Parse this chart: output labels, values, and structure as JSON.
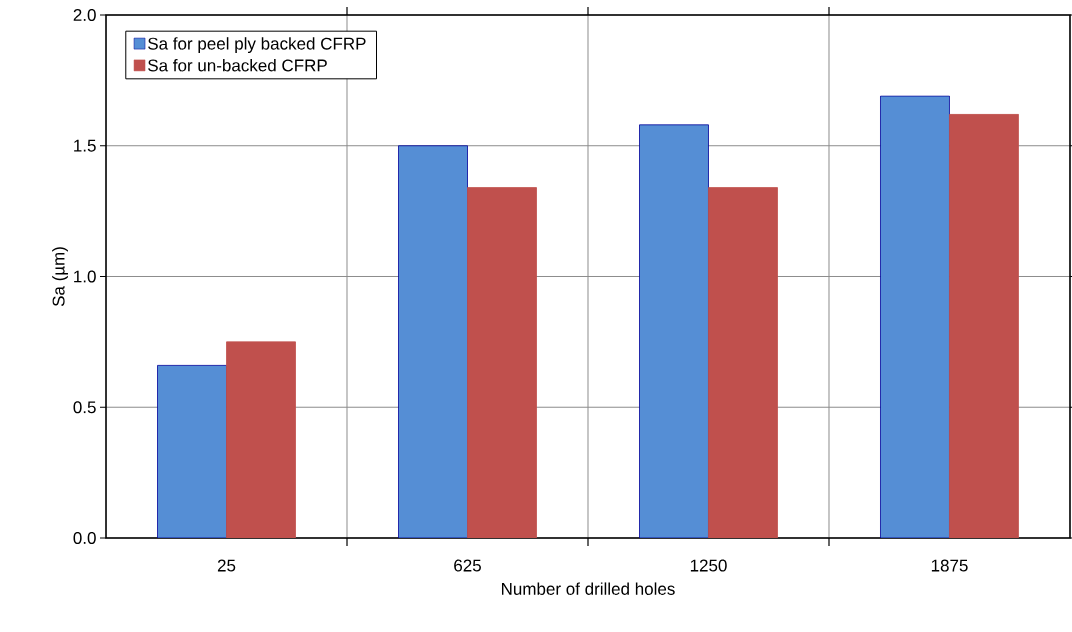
{
  "chart_data": {
    "type": "bar",
    "xlabel": "Number of drilled holes",
    "ylabel": "Sa (µm)",
    "categories": [
      "25",
      "625",
      "1250",
      "1875"
    ],
    "series": [
      {
        "name": "Sa for peel ply backed CFRP",
        "color": "#558ed5",
        "values": [
          0.66,
          1.5,
          1.58,
          1.69
        ]
      },
      {
        "name": "Sa for un-backed CFRP",
        "color": "#c0504d",
        "values": [
          0.75,
          1.34,
          1.34,
          1.62
        ]
      }
    ],
    "ylim": [
      0,
      2
    ],
    "yticks": [
      {
        "value": 0,
        "label": "0.0"
      },
      {
        "value": 0.5,
        "label": "0.5"
      },
      {
        "value": 1,
        "label": "1.0"
      },
      {
        "value": 1.5,
        "label": "1.5"
      },
      {
        "value": 2,
        "label": "2.0"
      }
    ],
    "grid": true,
    "legend": "top left"
  }
}
